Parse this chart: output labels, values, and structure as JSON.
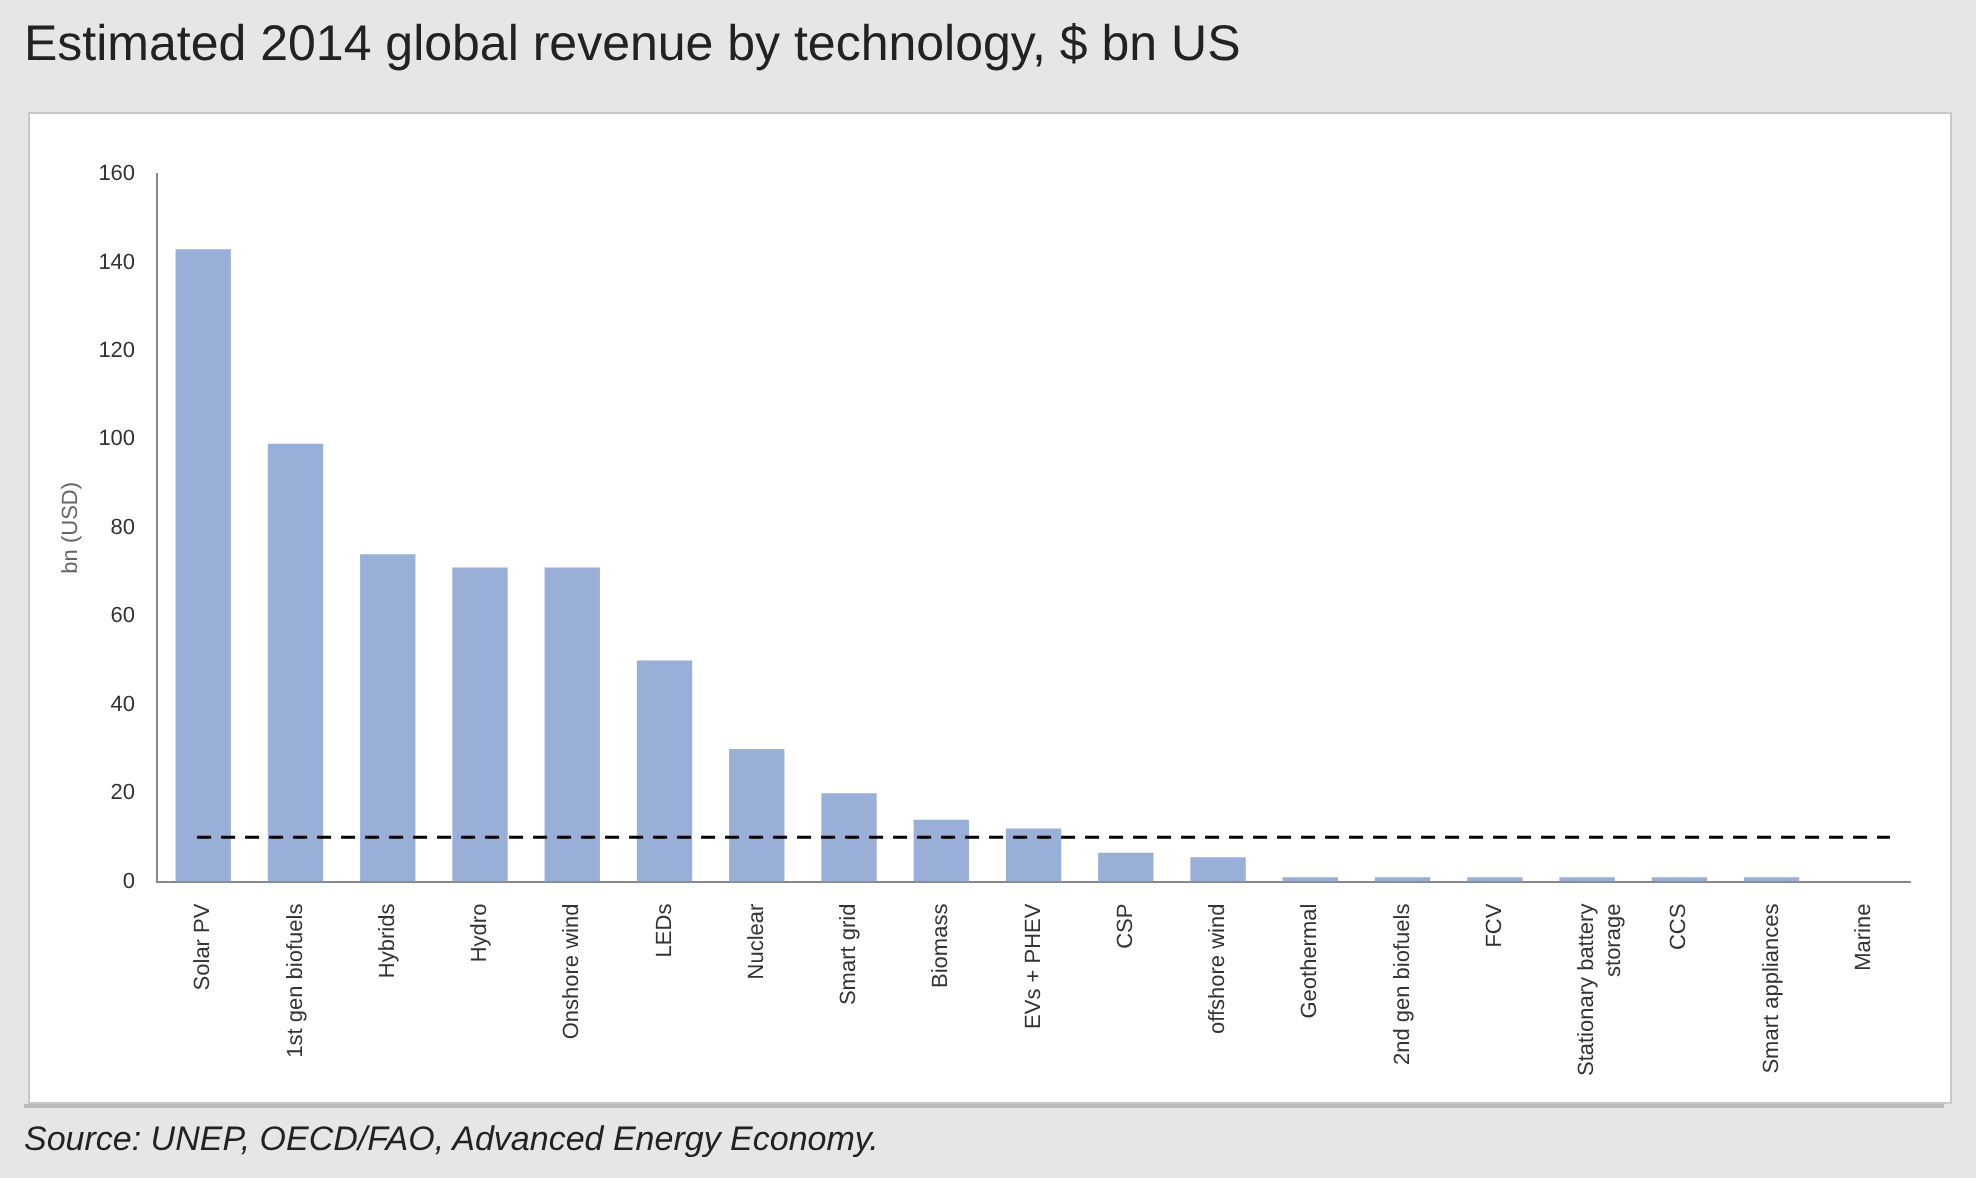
{
  "chart_data": {
    "type": "bar",
    "title": "Estimated 2014 global revenue by technology, $ bn US",
    "ylabel": "bn (USD)",
    "categories": [
      "Solar PV",
      "1st gen biofuels",
      "Hybrids",
      "Hydro",
      "Onshore wind",
      "LEDs",
      "Nuclear",
      "Smart grid",
      "Biomass",
      "EVs + PHEV",
      "CSP",
      "offshore wind",
      "Geothermal",
      "2nd gen biofuels",
      "FCV",
      "Stationary battery storage",
      "CCS",
      "Smart appliances",
      "Marine"
    ],
    "values": [
      143,
      99,
      74,
      71,
      71,
      50,
      30,
      20,
      14,
      12,
      6.5,
      5.5,
      1,
      1,
      1,
      1,
      1,
      1,
      0
    ],
    "color": "#9aafd8",
    "ylim": [
      0,
      160
    ],
    "yticks": [
      0,
      20,
      40,
      60,
      80,
      100,
      120,
      140,
      160
    ],
    "grid": false,
    "legend": false,
    "ref_lines": [
      {
        "axis": "y",
        "value": 10,
        "color": "#000000",
        "line_style": "dashed"
      }
    ],
    "annotations": [
      "Source: UNEP, OECD/FAO, Advanced Energy Economy."
    ]
  }
}
